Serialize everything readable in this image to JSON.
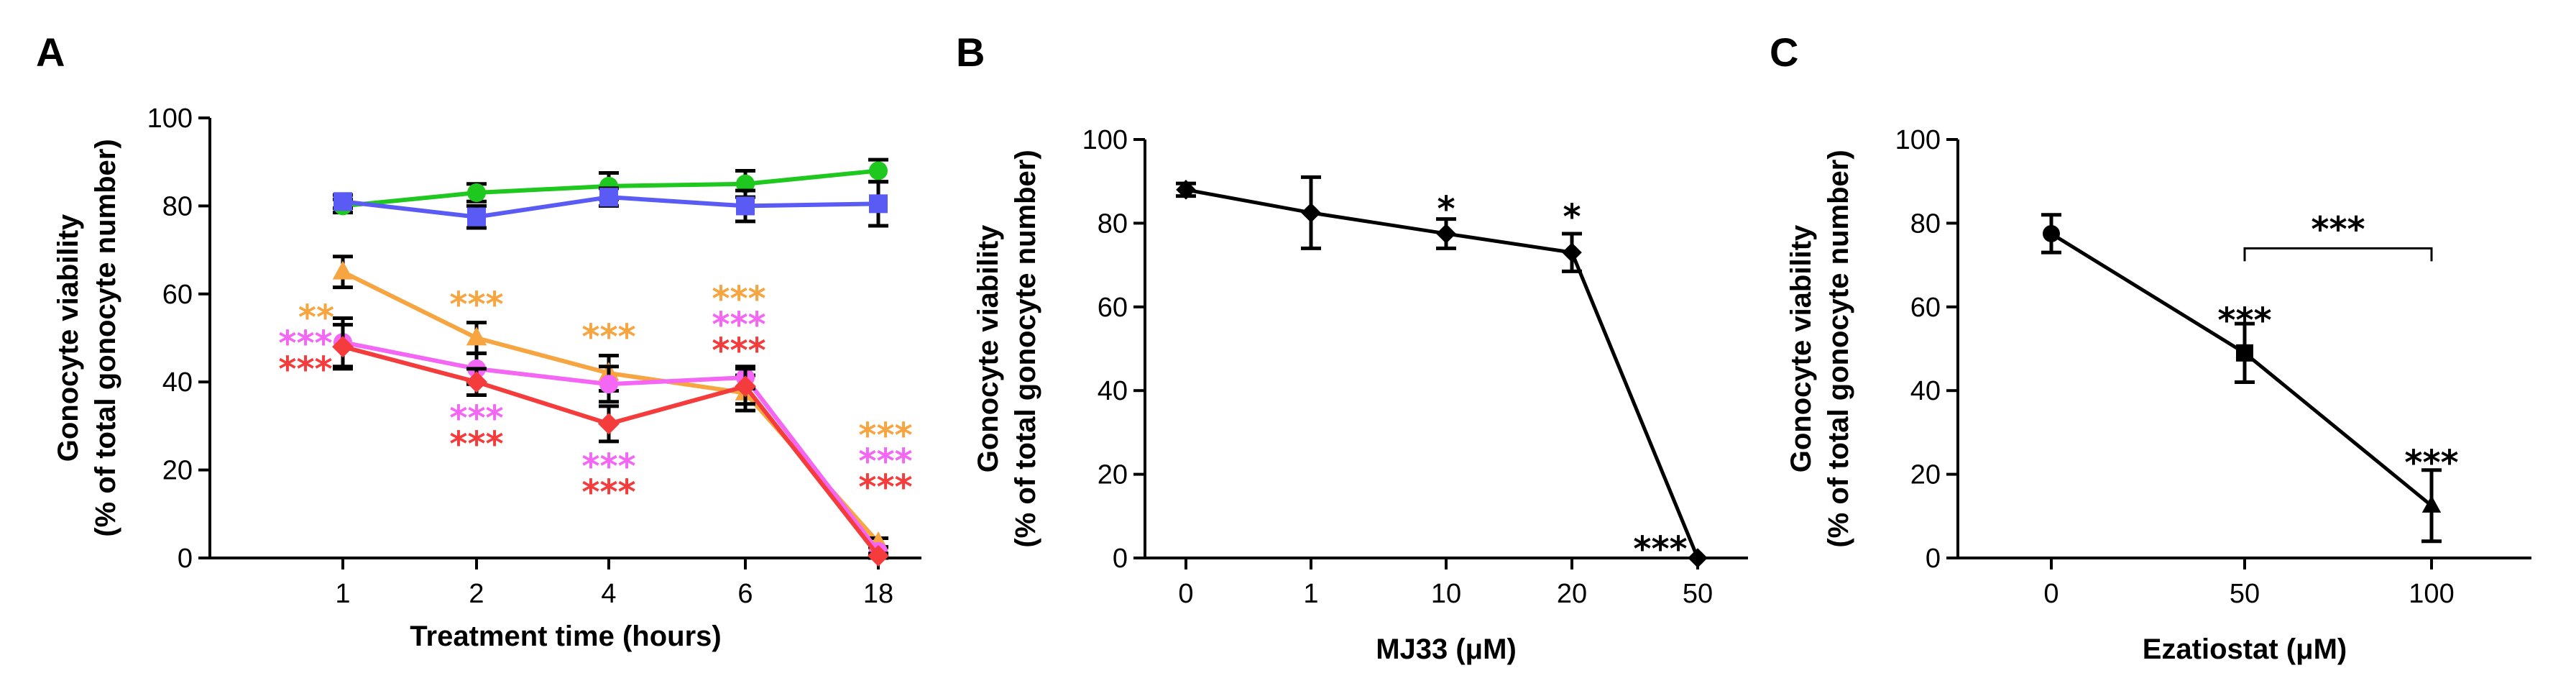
{
  "chart_data": [
    {
      "panel": "A",
      "type": "line",
      "xlabel": "Treatment time (hours)",
      "ylabel": "Gonocyte viability",
      "ylabel2": "(% of total gonocyte number)",
      "categories": [
        "1",
        "2",
        "4",
        "6",
        "18"
      ],
      "ylim": [
        0,
        100
      ],
      "yticks": [
        "0",
        "20",
        "40",
        "60",
        "80",
        "100"
      ],
      "series": [
        {
          "name": "green",
          "color": "#1ec81e",
          "marker": "circle",
          "values": [
            80,
            83,
            84.5,
            85,
            88
          ],
          "errors": [
            1.5,
            2,
            3,
            3,
            2.5
          ]
        },
        {
          "name": "blue",
          "color": "#5a5af5",
          "marker": "square",
          "values": [
            81,
            77.5,
            82,
            80,
            80.5
          ],
          "errors": [
            1.5,
            2.5,
            2,
            3.5,
            5
          ]
        },
        {
          "name": "orange",
          "color": "#f7a540",
          "marker": "triangle",
          "values": [
            65,
            50,
            42,
            37.5,
            3.5
          ],
          "errors": [
            3.5,
            3.5,
            4,
            4,
            1
          ]
        },
        {
          "name": "magenta",
          "color": "#f466f4",
          "marker": "circle",
          "values": [
            49,
            43,
            39.5,
            41,
            1.5
          ],
          "errors": [
            5.5,
            3.5,
            4,
            2.5,
            1
          ]
        },
        {
          "name": "red",
          "color": "#f53c3c",
          "marker": "diamond",
          "values": [
            48,
            40,
            30.5,
            39,
            0.5
          ],
          "errors": [
            5,
            3,
            4,
            4,
            0.5
          ]
        }
      ],
      "annotations": [
        {
          "category": "1",
          "lines": [
            {
              "text": "**",
              "color": "#f7a540"
            },
            {
              "text": "***",
              "color": "#f466f4"
            },
            {
              "text": "***",
              "color": "#f53c3c"
            }
          ]
        },
        {
          "category": "2",
          "lines": [
            {
              "text": "***",
              "color": "#f7a540"
            }
          ]
        },
        {
          "category": "2",
          "lines": [
            {
              "text": "***",
              "color": "#f466f4"
            },
            {
              "text": "***",
              "color": "#f53c3c"
            }
          ]
        },
        {
          "category": "4",
          "lines": [
            {
              "text": "***",
              "color": "#f7a540"
            }
          ]
        },
        {
          "category": "4",
          "lines": [
            {
              "text": "***",
              "color": "#f466f4"
            },
            {
              "text": "***",
              "color": "#f53c3c"
            }
          ]
        },
        {
          "category": "6",
          "lines": [
            {
              "text": "***",
              "color": "#f7a540"
            },
            {
              "text": "***",
              "color": "#f466f4"
            },
            {
              "text": "***",
              "color": "#f53c3c"
            }
          ]
        },
        {
          "category": "18",
          "lines": [
            {
              "text": "***",
              "color": "#f7a540"
            },
            {
              "text": "***",
              "color": "#f466f4"
            },
            {
              "text": "***",
              "color": "#f53c3c"
            }
          ]
        }
      ]
    },
    {
      "panel": "B",
      "type": "line",
      "xlabel": "MJ33 (μM)",
      "ylabel": "Gonocyte viability",
      "ylabel2": "(% of total gonocyte number)",
      "categories": [
        "0",
        "1",
        "10",
        "20",
        "50"
      ],
      "ylim": [
        0,
        100
      ],
      "yticks": [
        "0",
        "20",
        "40",
        "60",
        "80",
        "100"
      ],
      "series": [
        {
          "name": "MJ33",
          "color": "#000000",
          "marker": "diamond",
          "values": [
            88,
            82.5,
            77.5,
            73,
            0
          ],
          "errors": [
            1.5,
            8.5,
            3.5,
            4.5,
            0
          ]
        }
      ],
      "annotations": [
        {
          "category": "10",
          "text": "*"
        },
        {
          "category": "20",
          "text": "*"
        },
        {
          "category": "50",
          "text": "***"
        }
      ]
    },
    {
      "panel": "C",
      "type": "line",
      "xlabel": "Ezatiostat (μM)",
      "ylabel": "Gonocyte viability",
      "ylabel2": "(% of total gonocyte number)",
      "categories": [
        "0",
        "50",
        "100"
      ],
      "ylim": [
        0,
        100
      ],
      "yticks": [
        "0",
        "20",
        "40",
        "60",
        "80",
        "100"
      ],
      "series": [
        {
          "name": "Ezatiostat",
          "color": "#000000",
          "markers": [
            "circle",
            "square",
            "triangle"
          ],
          "values": [
            77.5,
            49,
            12.5
          ],
          "errors": [
            4.5,
            7,
            8.5
          ]
        }
      ],
      "annotations": [
        {
          "category": "50",
          "text": "***"
        },
        {
          "category": "100",
          "text": "***"
        }
      ],
      "bracket": {
        "from": "50",
        "to": "100",
        "value": 74,
        "text": "***"
      }
    }
  ]
}
